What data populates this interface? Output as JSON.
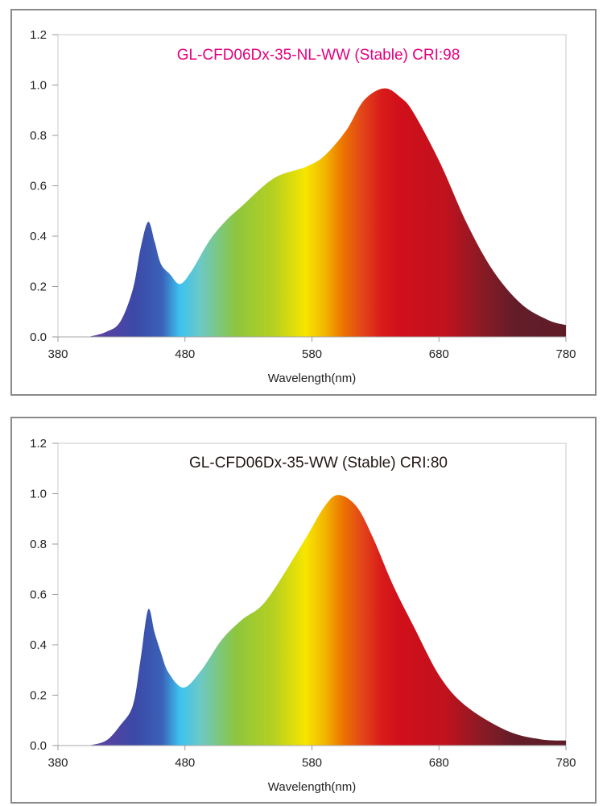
{
  "chart_data": [
    {
      "type": "area",
      "title": "GL-CFD06Dx-35-NL-WW (Stable) CRI:98",
      "title_color": "#e4007f",
      "xlabel": "Wavelength(nm)",
      "ylabel": "",
      "xlim": [
        380,
        780
      ],
      "ylim": [
        0,
        1.2
      ],
      "xticks": [
        "380",
        "480",
        "580",
        "680",
        "780"
      ],
      "yticks": [
        "0.0",
        "0.2",
        "0.4",
        "0.6",
        "0.8",
        "1.0",
        "1.2"
      ],
      "grid": false,
      "fill": "visible-spectrum gradient",
      "x": [
        404,
        418,
        429,
        439,
        445,
        451,
        456,
        461,
        468,
        476,
        485,
        499,
        512,
        525,
        550,
        575,
        590,
        607,
        621,
        637,
        650,
        660,
        681,
        702,
        723,
        745,
        766,
        780
      ],
      "y": [
        0.0,
        0.02,
        0.06,
        0.19,
        0.35,
        0.457,
        0.38,
        0.29,
        0.25,
        0.21,
        0.26,
        0.38,
        0.46,
        0.52,
        0.63,
        0.675,
        0.72,
        0.82,
        0.94,
        0.987,
        0.95,
        0.89,
        0.69,
        0.45,
        0.26,
        0.13,
        0.067,
        0.047
      ]
    },
    {
      "type": "area",
      "title": "GL-CFD06Dx-35-WW (Stable) CRI:80",
      "title_color": "#231815",
      "xlabel": "Wavelength(nm)",
      "ylabel": "",
      "xlim": [
        380,
        780
      ],
      "ylim": [
        0,
        1.2
      ],
      "xticks": [
        "380",
        "480",
        "580",
        "680",
        "780"
      ],
      "yticks": [
        "0.0",
        "0.2",
        "0.4",
        "0.6",
        "0.8",
        "1.0",
        "1.2"
      ],
      "grid": false,
      "fill": "visible-spectrum gradient",
      "x": [
        404,
        418,
        429,
        439,
        445,
        451,
        456,
        461,
        467,
        479,
        493,
        509,
        525,
        544,
        573,
        590,
        601,
        615,
        628,
        643,
        660,
        681,
        702,
        734,
        760,
        780
      ],
      "y": [
        0.0,
        0.02,
        0.08,
        0.16,
        0.34,
        0.54,
        0.45,
        0.37,
        0.29,
        0.23,
        0.3,
        0.42,
        0.5,
        0.576,
        0.806,
        0.95,
        0.995,
        0.95,
        0.826,
        0.646,
        0.474,
        0.272,
        0.154,
        0.058,
        0.025,
        0.02
      ]
    }
  ],
  "spectrum_stops": [
    [
      400,
      "#6a3fa0"
    ],
    [
      440,
      "#3c48a6"
    ],
    [
      462,
      "#3a62b8"
    ],
    [
      476,
      "#3cc2f0"
    ],
    [
      492,
      "#6cc9c6"
    ],
    [
      520,
      "#8cc63f"
    ],
    [
      550,
      "#b6d01f"
    ],
    [
      575,
      "#f6e600"
    ],
    [
      590,
      "#f3b600"
    ],
    [
      605,
      "#ec7200"
    ],
    [
      620,
      "#e2441a"
    ],
    [
      635,
      "#d81b1a"
    ],
    [
      650,
      "#d00f1a"
    ],
    [
      685,
      "#c1121e"
    ],
    [
      712,
      "#8c1a24"
    ],
    [
      740,
      "#621d29"
    ],
    [
      780,
      "#5f1d28"
    ]
  ]
}
